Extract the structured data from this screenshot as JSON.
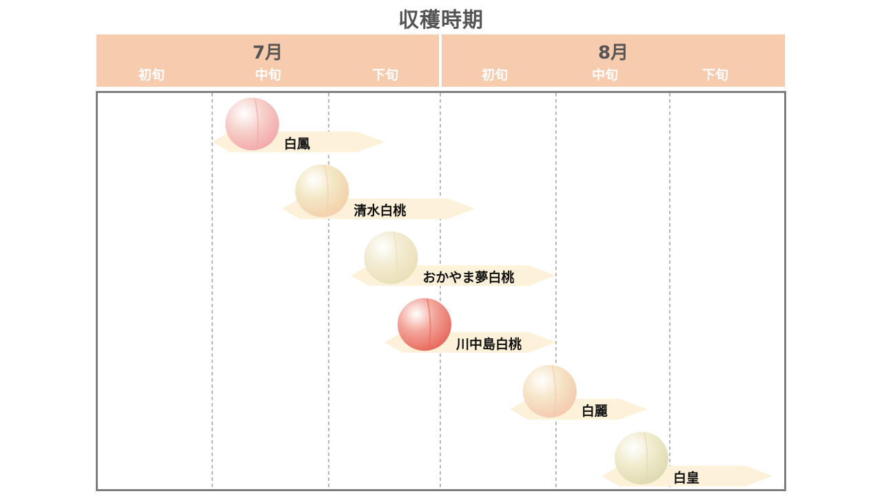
{
  "chart_data": {
    "type": "timeline",
    "title": "収穫時期",
    "months": [
      {
        "label": "7月",
        "periods": [
          "初旬",
          "中旬",
          "下旬"
        ]
      },
      {
        "label": "8月",
        "periods": [
          "初旬",
          "中旬",
          "下旬"
        ]
      }
    ],
    "x_unit": "period index (0 = 7月初旬 start, 6 = 8月下旬 end)",
    "varieties": [
      {
        "name": "白鳳",
        "start": 1.0,
        "end": 2.5,
        "peach_color": "#f6d2cc",
        "blush": "#f3a7a7"
      },
      {
        "name": "清水白桃",
        "start": 1.6,
        "end": 3.3,
        "peach_color": "#f3e8c6",
        "blush": "#f3cfaa"
      },
      {
        "name": "おかやま夢白桃",
        "start": 2.2,
        "end": 4.0,
        "peach_color": "#f2ecd3",
        "blush": "#e9dfb6"
      },
      {
        "name": "川中島白桃",
        "start": 2.5,
        "end": 4.0,
        "peach_color": "#f3a69b",
        "blush": "#e7675b"
      },
      {
        "name": "白麗",
        "start": 3.6,
        "end": 4.8,
        "peach_color": "#f6e6c9",
        "blush": "#f3c9ad"
      },
      {
        "name": "白皇",
        "start": 4.4,
        "end": 5.9,
        "peach_color": "#f1ecce",
        "blush": "#dddab1"
      }
    ],
    "colors": {
      "header_fill": "#f7cbae",
      "arrow_fill": "#fdf1d9",
      "frame": "#7f7f7f",
      "gridline": "#888888",
      "title_text": "#555555",
      "period_text": "#ffffff"
    }
  }
}
